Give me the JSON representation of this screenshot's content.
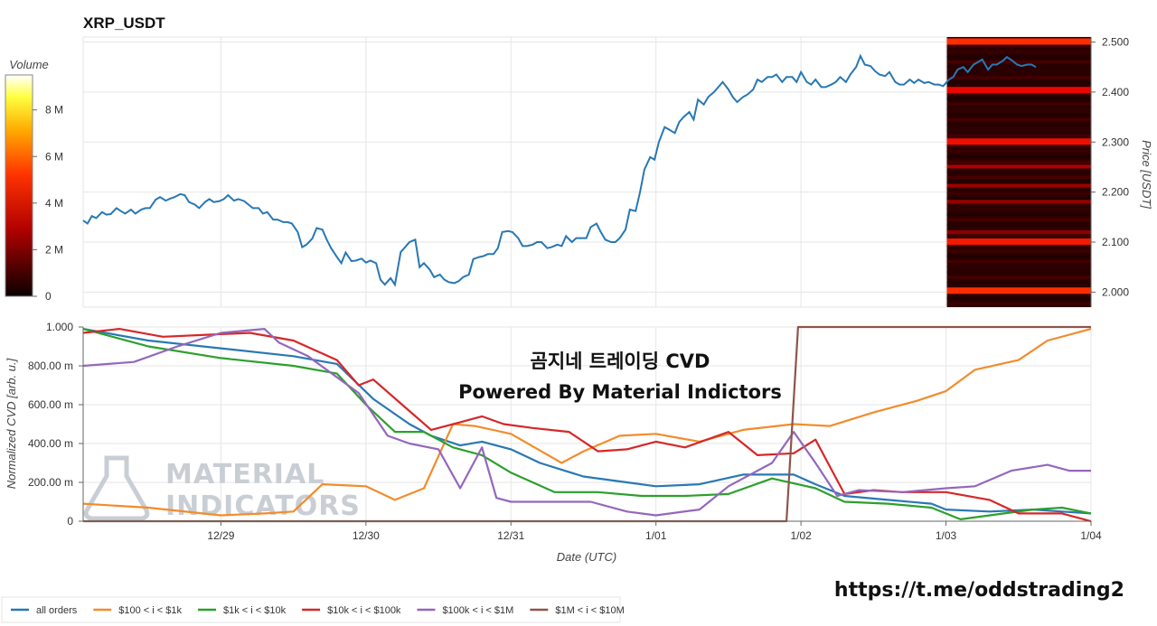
{
  "chart_data": [
    {
      "type": "line",
      "title": "XRP_USDT",
      "ylabel": "Price [USDT]",
      "ylim": [
        1.97,
        2.51
      ],
      "yticks": [
        "2.000",
        "2.100",
        "2.200",
        "2.300",
        "2.400",
        "2.500"
      ],
      "x_range": [
        -2.95,
        4.0
      ],
      "xticks": [
        "12/29",
        "12/30",
        "12/31",
        "1/01",
        "1/02",
        "1/03",
        "1/04"
      ],
      "grid": true,
      "price_x": [
        -2.95,
        -2.92,
        -2.89,
        -2.86,
        -2.82,
        -2.79,
        -2.76,
        -2.72,
        -2.69,
        -2.66,
        -2.62,
        -2.59,
        -2.55,
        -2.52,
        -2.49,
        -2.45,
        -2.42,
        -2.38,
        -2.35,
        -2.32,
        -2.28,
        -2.25,
        -2.22,
        -2.18,
        -2.15,
        -2.11,
        -2.08,
        -2.05,
        -2.01,
        -1.98,
        -1.95,
        -1.91,
        -1.88,
        -1.84,
        -1.81,
        -1.78,
        -1.74,
        -1.71,
        -1.68,
        -1.64,
        -1.61,
        -1.57,
        -1.54,
        -1.51,
        -1.47,
        -1.44,
        -1.41,
        -1.37,
        -1.34,
        -1.3,
        -1.27,
        -1.24,
        -1.2,
        -1.17,
        -1.14,
        -1.1,
        -1.07,
        -1.03,
        -1.0,
        -0.97,
        -0.93,
        -0.9,
        -0.87,
        -0.83,
        -0.8,
        -0.76,
        -0.73,
        -0.7,
        -0.66,
        -0.63,
        -0.6,
        -0.56,
        -0.53,
        -0.49,
        -0.46,
        -0.43,
        -0.39,
        -0.36,
        -0.33,
        -0.29,
        -0.26,
        -0.22,
        -0.19,
        -0.16,
        -0.12,
        -0.09,
        -0.06,
        -0.02,
        0.01,
        0.05,
        0.08,
        0.11,
        0.15,
        0.18,
        0.21,
        0.25,
        0.28,
        0.32,
        0.35,
        0.38,
        0.42,
        0.45,
        0.48,
        0.52,
        0.55,
        0.59,
        0.62,
        0.65,
        0.69,
        0.72,
        0.75,
        0.79,
        0.82,
        0.86,
        0.89,
        0.92,
        0.96,
        0.99,
        1.02,
        1.06,
        1.09,
        1.13,
        1.16,
        1.19,
        1.23,
        1.26,
        1.29,
        1.33,
        1.36,
        1.4,
        1.43,
        1.46,
        1.5,
        1.53,
        1.56,
        1.6,
        1.63,
        1.67,
        1.7,
        1.73,
        1.77,
        1.8,
        1.83,
        1.87,
        1.9,
        1.94,
        1.97,
        2.0,
        2.04,
        2.07,
        2.1,
        2.14,
        2.17,
        2.21,
        2.24,
        2.27,
        2.31,
        2.34,
        2.38,
        2.41,
        2.44,
        2.48,
        2.51,
        2.54,
        2.58,
        2.61,
        2.65,
        2.68,
        2.71,
        2.75,
        2.78,
        2.81,
        2.85,
        2.88,
        2.92,
        2.95,
        2.98,
        3.02,
        3.05,
        3.08,
        3.12,
        3.15,
        3.19,
        3.22,
        3.25,
        3.29,
        3.32,
        3.35,
        3.39,
        3.42,
        3.46,
        3.49,
        3.52,
        3.56,
        3.59,
        3.62,
        3.66,
        3.69,
        3.73,
        3.76,
        3.79,
        3.83,
        3.86,
        3.89,
        3.93,
        3.96,
        4.0
      ],
      "price_y": [
        2.143,
        2.137,
        2.152,
        2.148,
        2.16,
        2.155,
        2.156,
        2.168,
        2.162,
        2.157,
        2.165,
        2.157,
        2.165,
        2.168,
        2.168,
        2.185,
        2.19,
        2.183,
        2.187,
        2.19,
        2.196,
        2.194,
        2.18,
        2.175,
        2.168,
        2.18,
        2.186,
        2.18,
        2.182,
        2.186,
        2.194,
        2.183,
        2.186,
        2.182,
        2.175,
        2.168,
        2.168,
        2.157,
        2.16,
        2.145,
        2.145,
        2.14,
        2.14,
        2.137,
        2.12,
        2.09,
        2.095,
        2.107,
        2.128,
        2.125,
        2.105,
        2.088,
        2.07,
        2.058,
        2.079,
        2.062,
        2.063,
        2.067,
        2.059,
        2.063,
        2.058,
        2.025,
        2.015,
        2.028,
        2.015,
        2.08,
        2.09,
        2.1,
        2.105,
        2.05,
        2.058,
        2.045,
        2.03,
        2.035,
        2.025,
        2.02,
        2.018,
        2.022,
        2.03,
        2.035,
        2.066,
        2.07,
        2.072,
        2.076,
        2.076,
        2.088,
        2.12,
        2.122,
        2.12,
        2.108,
        2.092,
        2.092,
        2.095,
        2.1,
        2.1,
        2.088,
        2.09,
        2.095,
        2.092,
        2.112,
        2.1,
        2.108,
        2.108,
        2.108,
        2.13,
        2.137,
        2.12,
        2.105,
        2.1,
        2.1,
        2.108,
        2.125,
        2.165,
        2.162,
        2.2,
        2.245,
        2.27,
        2.265,
        2.3,
        2.33,
        2.325,
        2.318,
        2.34,
        2.35,
        2.36,
        2.345,
        2.385,
        2.375,
        2.39,
        2.4,
        2.41,
        2.42,
        2.405,
        2.39,
        2.38,
        2.39,
        2.395,
        2.405,
        2.425,
        2.42,
        2.43,
        2.43,
        2.435,
        2.42,
        2.43,
        2.43,
        2.42,
        2.44,
        2.42,
        2.415,
        2.425,
        2.41,
        2.41,
        2.415,
        2.42,
        2.43,
        2.42,
        2.435,
        2.45,
        2.472,
        2.455,
        2.452,
        2.442,
        2.435,
        2.432,
        2.44,
        2.42,
        2.415,
        2.415,
        2.425,
        2.418,
        2.425,
        2.418,
        2.42,
        2.415,
        2.415,
        2.412,
        2.425,
        2.43,
        2.445,
        2.45,
        2.44,
        2.455,
        2.46,
        2.465,
        2.445,
        2.455,
        2.455,
        2.462,
        2.47,
        2.462,
        2.455,
        2.452,
        2.455,
        2.455,
        2.45
      ],
      "heatmap": {
        "colorbar_label": "Volume",
        "colorbar_ticks": [
          "0",
          "2 M",
          "4 M",
          "6 M",
          "8 M"
        ],
        "colorbar_range": [
          0,
          9.5
        ],
        "x_range": [
          3.0,
          4.0
        ],
        "bands": [
          {
            "price": 2.501,
            "volume": 3.0
          },
          {
            "price": 2.404,
            "volume": 2.6
          },
          {
            "price": 2.301,
            "volume": 2.7
          },
          {
            "price": 2.251,
            "volume": 1.6
          },
          {
            "price": 2.213,
            "volume": 1.2
          },
          {
            "price": 2.181,
            "volume": 1.0
          },
          {
            "price": 2.12,
            "volume": 0.9
          },
          {
            "price": 2.101,
            "volume": 2.8
          },
          {
            "price": 2.003,
            "volume": 3.2
          }
        ]
      }
    },
    {
      "type": "line",
      "ylabel": "Normalized CVD [arb. u.]",
      "xlabel": "Date (UTC)",
      "ylim": [
        0,
        1.0
      ],
      "yticks": [
        "0",
        "200.00 m",
        "400.00 m",
        "600.00 m",
        "800.00 m",
        "1.000"
      ],
      "x_range": [
        -2.95,
        4.0
      ],
      "xticks": [
        "12/29",
        "12/30",
        "12/31",
        "1/01",
        "1/02",
        "1/03",
        "1/04"
      ],
      "grid": true,
      "legend": "bottom-left",
      "annotations": [
        "곰지네 트레이딩 CVD",
        "Powered By Material Indictors"
      ],
      "watermark": [
        "MATERIAL",
        "INDICATORS"
      ],
      "footer_url": "https://t.me/oddstrading2",
      "series": [
        {
          "name": "all orders",
          "color": "#2878b4",
          "x": [
            -2.95,
            -2.5,
            -2.0,
            -1.5,
            -1.2,
            -0.95,
            -0.7,
            -0.55,
            -0.35,
            -0.2,
            0.0,
            0.2,
            0.5,
            0.8,
            1.0,
            1.3,
            1.6,
            1.95,
            2.1,
            2.3,
            2.6,
            2.9,
            3.0,
            3.3,
            3.6,
            3.8,
            4.0
          ],
          "y": [
            0.99,
            0.93,
            0.89,
            0.85,
            0.81,
            0.63,
            0.5,
            0.44,
            0.39,
            0.41,
            0.37,
            0.3,
            0.23,
            0.2,
            0.18,
            0.19,
            0.24,
            0.24,
            0.19,
            0.13,
            0.11,
            0.09,
            0.06,
            0.05,
            0.06,
            0.05,
            0.04
          ]
        },
        {
          "name": "$100 < i < $1k",
          "color": "#f28c2b",
          "x": [
            -2.95,
            -2.5,
            -2.0,
            -1.7,
            -1.5,
            -1.3,
            -1.0,
            -0.8,
            -0.6,
            -0.4,
            -0.25,
            0.0,
            0.35,
            0.5,
            0.75,
            1.0,
            1.3,
            1.6,
            1.95,
            2.2,
            2.5,
            2.8,
            3.0,
            3.2,
            3.5,
            3.7,
            4.0
          ],
          "y": [
            0.09,
            0.07,
            0.03,
            0.04,
            0.05,
            0.19,
            0.18,
            0.11,
            0.17,
            0.5,
            0.49,
            0.45,
            0.3,
            0.36,
            0.44,
            0.45,
            0.41,
            0.47,
            0.5,
            0.49,
            0.56,
            0.62,
            0.67,
            0.78,
            0.83,
            0.93,
            0.99
          ]
        },
        {
          "name": "$1k < i < $10k",
          "color": "#2ca02c",
          "x": [
            -2.95,
            -2.5,
            -2.0,
            -1.5,
            -1.2,
            -1.0,
            -0.8,
            -0.6,
            -0.4,
            -0.2,
            0.0,
            0.3,
            0.6,
            0.9,
            1.2,
            1.5,
            1.8,
            2.1,
            2.3,
            2.6,
            2.9,
            3.1,
            3.4,
            3.6,
            3.8,
            4.0
          ],
          "y": [
            0.99,
            0.9,
            0.84,
            0.8,
            0.76,
            0.6,
            0.46,
            0.46,
            0.38,
            0.34,
            0.25,
            0.15,
            0.15,
            0.13,
            0.13,
            0.14,
            0.22,
            0.17,
            0.1,
            0.09,
            0.07,
            0.01,
            0.04,
            0.06,
            0.07,
            0.04
          ]
        },
        {
          "name": "$10k < i < $100k",
          "color": "#d62728",
          "x": [
            -2.95,
            -2.7,
            -2.4,
            -2.1,
            -1.8,
            -1.5,
            -1.2,
            -1.05,
            -0.95,
            -0.75,
            -0.55,
            -0.35,
            -0.2,
            -0.05,
            0.15,
            0.4,
            0.6,
            0.8,
            1.0,
            1.2,
            1.5,
            1.7,
            1.95,
            2.1,
            2.3,
            2.5,
            2.7,
            3.0,
            3.3,
            3.5,
            3.8,
            4.0
          ],
          "y": [
            0.97,
            0.99,
            0.95,
            0.96,
            0.97,
            0.93,
            0.83,
            0.7,
            0.73,
            0.6,
            0.47,
            0.51,
            0.54,
            0.5,
            0.48,
            0.46,
            0.36,
            0.37,
            0.41,
            0.38,
            0.46,
            0.34,
            0.35,
            0.42,
            0.14,
            0.16,
            0.15,
            0.15,
            0.11,
            0.04,
            0.04,
            0.0
          ]
        },
        {
          "name": "$100k < i < $1M",
          "color": "#9467bd",
          "x": [
            -2.95,
            -2.6,
            -2.3,
            -2.0,
            -1.7,
            -1.6,
            -1.4,
            -1.05,
            -0.85,
            -0.7,
            -0.5,
            -0.35,
            -0.2,
            -0.1,
            0.0,
            0.3,
            0.55,
            0.8,
            1.0,
            1.3,
            1.5,
            1.8,
            1.95,
            2.1,
            2.25,
            2.4,
            2.7,
            3.0,
            3.2,
            3.45,
            3.7,
            3.85,
            4.0
          ],
          "y": [
            0.8,
            0.82,
            0.9,
            0.97,
            0.99,
            0.92,
            0.85,
            0.66,
            0.44,
            0.4,
            0.37,
            0.17,
            0.38,
            0.12,
            0.1,
            0.1,
            0.1,
            0.05,
            0.03,
            0.06,
            0.18,
            0.3,
            0.46,
            0.3,
            0.13,
            0.16,
            0.15,
            0.17,
            0.18,
            0.26,
            0.29,
            0.26,
            0.26
          ]
        },
        {
          "name": "$1M < i < $10M",
          "color": "#8c564b",
          "x": [
            -2.95,
            1.9,
            1.98,
            4.0
          ],
          "y": [
            0.0,
            0.0,
            1.0,
            1.0
          ]
        }
      ]
    }
  ]
}
